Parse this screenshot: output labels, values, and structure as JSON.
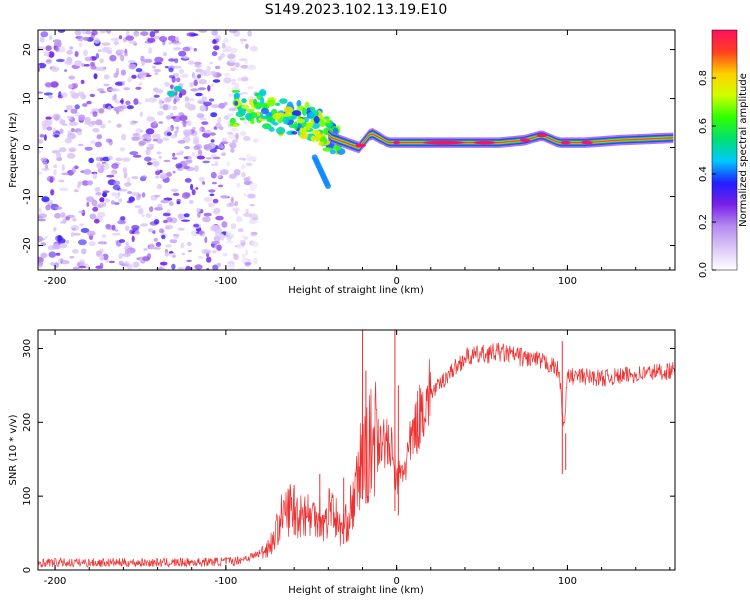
{
  "title": "S149.2023.102.13.19.E10",
  "chart_data": [
    {
      "type": "heatmap",
      "xlabel": "Height of straight line (km)",
      "ylabel": "Frequency (Hz)",
      "xlim": [
        -210,
        163
      ],
      "ylim": [
        -25,
        24
      ],
      "x_ticks": [
        -200,
        -100,
        0,
        100
      ],
      "x_tick_labels": [
        "-200",
        "-100",
        "0",
        "100"
      ],
      "y_ticks": [
        -20,
        -10,
        0,
        10,
        20
      ],
      "y_tick_labels": [
        "-20",
        "-10",
        "0",
        "10",
        "20"
      ],
      "dominant_frequency": [
        [
          -95,
          8
        ],
        [
          -88,
          8
        ],
        [
          -80,
          8
        ],
        [
          -72,
          7
        ],
        [
          -65,
          6
        ],
        [
          -58,
          6
        ],
        [
          -50,
          5
        ],
        [
          -44,
          4
        ],
        [
          -38,
          2
        ],
        [
          -30,
          1
        ],
        [
          -22,
          0
        ],
        [
          -15,
          3
        ],
        [
          -10,
          2
        ],
        [
          -5,
          1
        ],
        [
          0,
          1
        ],
        [
          20,
          1
        ],
        [
          40,
          1
        ],
        [
          60,
          1
        ],
        [
          75,
          1.5
        ],
        [
          85,
          2.5
        ],
        [
          95,
          1
        ],
        [
          110,
          1
        ],
        [
          130,
          1.5
        ],
        [
          163,
          2
        ]
      ],
      "noise_region_x": [
        -210,
        -90
      ],
      "grid": false
    },
    {
      "type": "colorbar",
      "label": "Normalized spectral amplitude",
      "range": [
        0,
        1
      ],
      "ticks": [
        0.0,
        0.2,
        0.4,
        0.6,
        0.8
      ],
      "tick_labels": [
        "0.0",
        "0.2",
        "0.4",
        "0.6",
        "0.8"
      ],
      "colormap": [
        "#ffffff",
        "#dcc7f7",
        "#b58cf0",
        "#7a1fe8",
        "#2020ff",
        "#00c8ff",
        "#00e070",
        "#30ff00",
        "#d0ff00",
        "#ffd000",
        "#ff4020",
        "#ff1060"
      ]
    },
    {
      "type": "line",
      "xlabel": "Height of straight line (km)",
      "ylabel": "SNR (10 * v/v)",
      "xlim": [
        -210,
        163
      ],
      "ylim": [
        0,
        325
      ],
      "x_ticks": [
        -200,
        -100,
        0,
        100
      ],
      "x_tick_labels": [
        "-200",
        "-100",
        "0",
        "100"
      ],
      "y_ticks": [
        0,
        100,
        200,
        300
      ],
      "y_tick_labels": [
        "0",
        "100",
        "200",
        "300"
      ],
      "series": [
        {
          "color": "#ee3030",
          "x": [
            -210,
            -190,
            -170,
            -150,
            -130,
            -110,
            -95,
            -85,
            -78,
            -72,
            -68,
            -62,
            -58,
            -54,
            -50,
            -46,
            -42,
            -38,
            -34,
            -30,
            -27,
            -24,
            -22,
            -20,
            -18,
            -15,
            -12,
            -9,
            -6,
            -3,
            0,
            3,
            6,
            10,
            15,
            20,
            25,
            30,
            35,
            40,
            50,
            60,
            70,
            80,
            90,
            95,
            98,
            100,
            105,
            110,
            120,
            130,
            140,
            150,
            163
          ],
          "values": [
            10,
            10,
            10,
            10,
            10,
            11,
            12,
            18,
            25,
            40,
            70,
            85,
            75,
            80,
            70,
            80,
            60,
            95,
            55,
            60,
            80,
            100,
            130,
            160,
            150,
            170,
            185,
            180,
            170,
            160,
            120,
            130,
            150,
            185,
            220,
            240,
            250,
            265,
            275,
            288,
            292,
            295,
            290,
            285,
            278,
            270,
            190,
            262,
            262,
            262,
            260,
            262,
            265,
            268,
            270
          ],
          "spikes": [
            [
              -60,
              115
            ],
            [
              -45,
              130
            ],
            [
              -31,
              125
            ],
            [
              -20,
              325
            ],
            [
              -18,
              270
            ],
            [
              -1,
              325
            ],
            [
              1,
              250
            ],
            [
              97,
              310
            ],
            [
              99,
              185
            ]
          ]
        }
      ],
      "grid": false
    }
  ]
}
